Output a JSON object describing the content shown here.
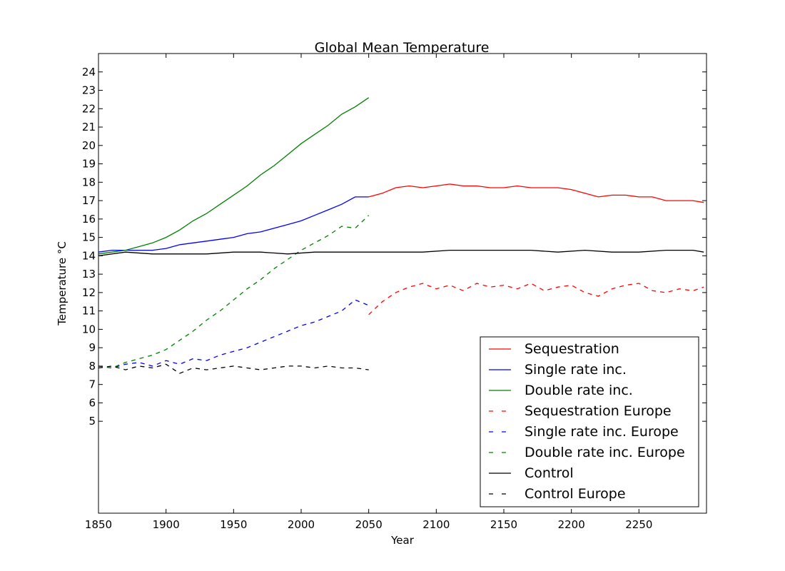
{
  "chart_data": {
    "type": "line",
    "title": "Global Mean Temperature",
    "xlabel": "Year",
    "ylabel": "Temperature °C",
    "xlim": [
      1850,
      2300
    ],
    "ylim": [
      0,
      25
    ],
    "x_ticks": [
      1850,
      1900,
      1950,
      2000,
      2050,
      2100,
      2150,
      2200,
      2250
    ],
    "y_ticks": [
      5,
      6,
      7,
      8,
      9,
      10,
      11,
      12,
      13,
      14,
      15,
      16,
      17,
      18,
      19,
      20,
      21,
      22,
      23,
      24
    ],
    "grid": false,
    "legend_position": "lower-right",
    "series": [
      {
        "name": "Sequestration",
        "color": "#ff0000",
        "dash": "solid",
        "x": [
          2050,
          2060,
          2070,
          2080,
          2090,
          2100,
          2110,
          2120,
          2130,
          2140,
          2150,
          2160,
          2170,
          2180,
          2190,
          2200,
          2210,
          2220,
          2230,
          2240,
          2250,
          2260,
          2270,
          2280,
          2290,
          2298
        ],
        "y": [
          17.2,
          17.4,
          17.7,
          17.8,
          17.7,
          17.8,
          17.9,
          17.8,
          17.8,
          17.7,
          17.7,
          17.8,
          17.7,
          17.7,
          17.7,
          17.6,
          17.4,
          17.2,
          17.3,
          17.3,
          17.2,
          17.2,
          17.0,
          17.0,
          17.0,
          16.9
        ]
      },
      {
        "name": "Single rate inc.",
        "color": "#0000ff",
        "dash": "solid",
        "x": [
          1850,
          1860,
          1870,
          1880,
          1890,
          1900,
          1910,
          1920,
          1930,
          1940,
          1950,
          1960,
          1970,
          1980,
          1990,
          2000,
          2010,
          2020,
          2030,
          2040,
          2050
        ],
        "y": [
          14.2,
          14.3,
          14.3,
          14.3,
          14.3,
          14.4,
          14.6,
          14.7,
          14.8,
          14.9,
          15.0,
          15.2,
          15.3,
          15.5,
          15.7,
          15.9,
          16.2,
          16.5,
          16.8,
          17.2,
          17.2
        ]
      },
      {
        "name": "Double rate inc.",
        "color": "#008000",
        "dash": "solid",
        "x": [
          1850,
          1860,
          1870,
          1880,
          1890,
          1900,
          1910,
          1920,
          1930,
          1940,
          1950,
          1960,
          1970,
          1980,
          1990,
          2000,
          2010,
          2020,
          2030,
          2040,
          2050
        ],
        "y": [
          14.1,
          14.2,
          14.3,
          14.5,
          14.7,
          15.0,
          15.4,
          15.9,
          16.3,
          16.8,
          17.3,
          17.8,
          18.4,
          18.9,
          19.5,
          20.1,
          20.6,
          21.1,
          21.7,
          22.1,
          22.6
        ]
      },
      {
        "name": "Sequestration Europe",
        "color": "#ff0000",
        "dash": "dashed",
        "x": [
          2050,
          2060,
          2070,
          2080,
          2090,
          2100,
          2110,
          2120,
          2130,
          2140,
          2150,
          2160,
          2170,
          2180,
          2190,
          2200,
          2210,
          2220,
          2230,
          2240,
          2250,
          2260,
          2270,
          2280,
          2290,
          2298
        ],
        "y": [
          10.8,
          11.5,
          12.0,
          12.3,
          12.5,
          12.2,
          12.4,
          12.1,
          12.5,
          12.3,
          12.4,
          12.2,
          12.5,
          12.1,
          12.3,
          12.4,
          12.0,
          11.8,
          12.2,
          12.4,
          12.5,
          12.1,
          12.0,
          12.2,
          12.1,
          12.3
        ]
      },
      {
        "name": "Single rate inc. Europe",
        "color": "#0000ff",
        "dash": "dashed",
        "x": [
          1850,
          1860,
          1870,
          1880,
          1890,
          1900,
          1910,
          1920,
          1930,
          1940,
          1950,
          1960,
          1970,
          1980,
          1990,
          2000,
          2010,
          2020,
          2030,
          2040,
          2050
        ],
        "y": [
          8.0,
          7.9,
          8.1,
          8.2,
          8.0,
          8.3,
          8.1,
          8.4,
          8.3,
          8.6,
          8.8,
          9.0,
          9.3,
          9.6,
          9.9,
          10.2,
          10.4,
          10.7,
          11.0,
          11.6,
          11.3
        ]
      },
      {
        "name": "Double rate inc. Europe",
        "color": "#008000",
        "dash": "dashed",
        "x": [
          1850,
          1860,
          1870,
          1880,
          1890,
          1900,
          1910,
          1920,
          1930,
          1940,
          1950,
          1960,
          1970,
          1980,
          1990,
          2000,
          2010,
          2020,
          2030,
          2040,
          2050
        ],
        "y": [
          8.0,
          7.9,
          8.2,
          8.4,
          8.6,
          8.9,
          9.4,
          9.9,
          10.5,
          11.0,
          11.6,
          12.2,
          12.7,
          13.3,
          13.8,
          14.3,
          14.7,
          15.1,
          15.6,
          15.5,
          16.2
        ]
      },
      {
        "name": "Control",
        "color": "#000000",
        "dash": "solid",
        "x": [
          1850,
          1870,
          1890,
          1910,
          1930,
          1950,
          1970,
          1990,
          2010,
          2030,
          2050,
          2070,
          2090,
          2110,
          2130,
          2150,
          2170,
          2190,
          2210,
          2230,
          2250,
          2270,
          2290,
          2298
        ],
        "y": [
          14.0,
          14.2,
          14.1,
          14.1,
          14.1,
          14.2,
          14.2,
          14.1,
          14.2,
          14.2,
          14.2,
          14.2,
          14.2,
          14.3,
          14.3,
          14.3,
          14.3,
          14.2,
          14.3,
          14.2,
          14.2,
          14.3,
          14.3,
          14.2
        ]
      },
      {
        "name": "Control Europe",
        "color": "#000000",
        "dash": "dashed",
        "x": [
          1850,
          1860,
          1870,
          1880,
          1890,
          1900,
          1910,
          1920,
          1930,
          1940,
          1950,
          1960,
          1970,
          1980,
          1990,
          2000,
          2010,
          2020,
          2030,
          2040,
          2050
        ],
        "y": [
          7.9,
          8.0,
          7.8,
          8.0,
          7.9,
          8.1,
          7.6,
          7.9,
          7.8,
          7.9,
          8.0,
          7.9,
          7.8,
          7.9,
          8.0,
          8.0,
          7.9,
          8.0,
          7.9,
          7.9,
          7.8
        ]
      }
    ]
  }
}
